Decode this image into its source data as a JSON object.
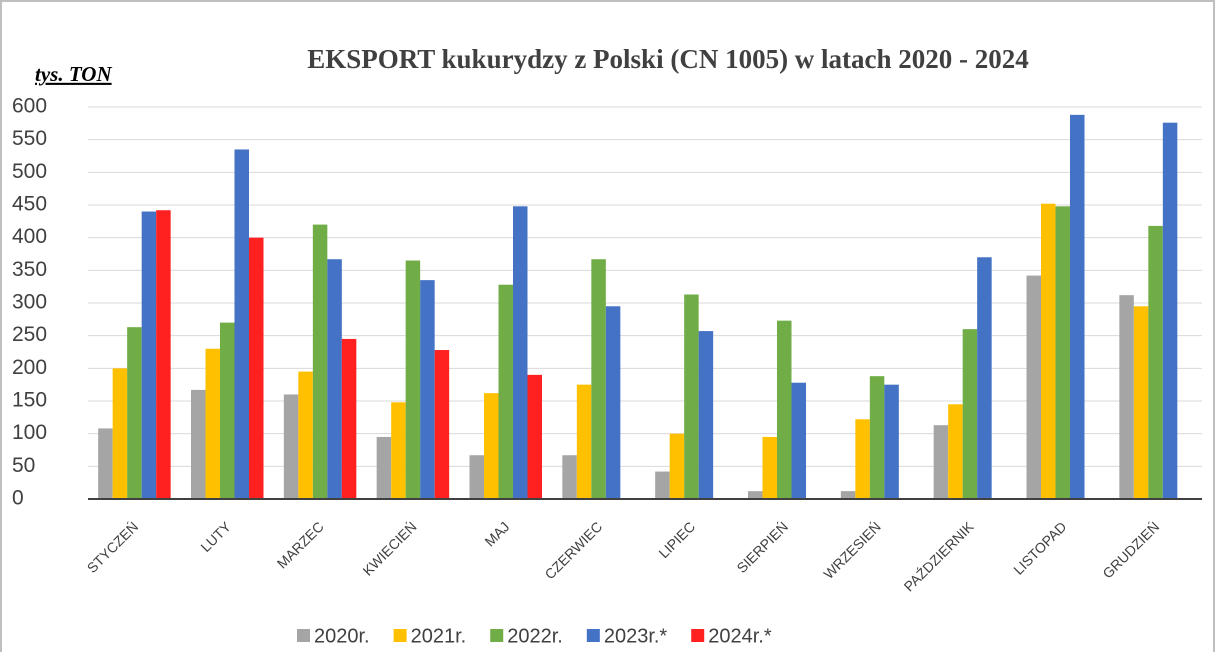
{
  "chart_data": {
    "type": "bar",
    "title": "EKSPORT kukurydzy z Polski (CN 1005) w latach 2020 - 2024",
    "y_label": "tys. TON",
    "categories": [
      "STYCZEŃ",
      "LUTY",
      "MARZEC",
      "KWIECIEŃ",
      "MAJ",
      "CZERWIEC",
      "LIPIEC",
      "SIERPIEŃ",
      "WRZESIEŃ",
      "PAŹDZIERNIK",
      "LISTOPAD",
      "GRUDZIEŃ"
    ],
    "series": [
      {
        "name": "2020r.",
        "color": "#a5a5a5",
        "values": [
          108,
          167,
          160,
          95,
          67,
          67,
          42,
          12,
          12,
          113,
          342,
          312
        ]
      },
      {
        "name": "2021r.",
        "color": "#ffc000",
        "values": [
          200,
          230,
          195,
          148,
          162,
          175,
          100,
          95,
          122,
          145,
          452,
          295
        ]
      },
      {
        "name": "2022r.",
        "color": "#70ad47",
        "values": [
          263,
          270,
          420,
          365,
          328,
          367,
          313,
          273,
          188,
          260,
          448,
          418
        ]
      },
      {
        "name": "2023r.*",
        "color": "#4472c4",
        "values": [
          440,
          535,
          367,
          335,
          448,
          295,
          257,
          178,
          175,
          370,
          588,
          576
        ]
      },
      {
        "name": "2024r.*",
        "color": "#ff2020",
        "values": [
          442,
          400,
          245,
          228,
          190,
          null,
          null,
          null,
          null,
          null,
          null,
          null
        ]
      }
    ],
    "ylim": [
      0,
      600
    ],
    "yticks": [
      0,
      50,
      100,
      150,
      200,
      250,
      300,
      350,
      400,
      450,
      500,
      550,
      600
    ],
    "grid": true
  }
}
